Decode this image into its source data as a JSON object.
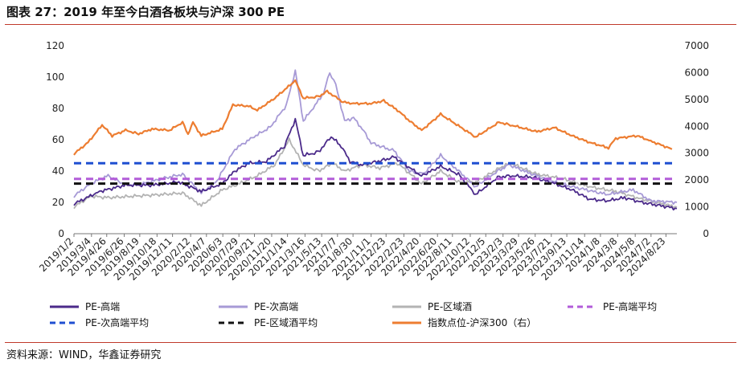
{
  "title": "图表 27：2019 年至今白酒各板块与沪深 300 PE",
  "source": "资料来源：WIND，华鑫证券研究",
  "chart_data": {
    "type": "line",
    "y_left": {
      "ylim": [
        0,
        120
      ],
      "ticks": [
        "0",
        "20",
        "40",
        "60",
        "80",
        "100",
        "120"
      ]
    },
    "y_right": {
      "ylim": [
        0,
        7000
      ],
      "ticks": [
        "0",
        "1000",
        "2000",
        "3000",
        "4000",
        "5000",
        "6000",
        "7000"
      ]
    },
    "x_range": [
      "2019/1/2",
      "2024/9/30"
    ],
    "x_ticks": [
      "2019/1/2",
      "2019/3/4",
      "2019/4/26",
      "2019/6/26",
      "2019/8/19",
      "2019/10/18",
      "2019/12/11",
      "2020/2/12",
      "2020/4/7",
      "2020/6/3",
      "2020/7/29",
      "2020/9/21",
      "2020/11/20",
      "2021/1/14",
      "2021/3/16",
      "2021/5/13",
      "2021/7/7",
      "2021/8/30",
      "2021/11/1",
      "2021/12/23",
      "2022/2/23",
      "2022/4/20",
      "2022/6/20",
      "2022/8/11",
      "2022/10/12",
      "2022/12/5",
      "2023/2/3",
      "2023/3/29",
      "2023/5/26",
      "2023/7/21",
      "2023/9/13",
      "2023/11/14",
      "2024/1/8",
      "2024/3/8",
      "2024/5/8",
      "2024/7/2",
      "2024/8/23"
    ],
    "series": [
      {
        "name": "PE-高端",
        "axis": "left",
        "color": "#4b2a8a",
        "style": "solid",
        "points": [
          [
            "2019/1/2",
            19
          ],
          [
            "2019/4/1",
            27
          ],
          [
            "2019/7/1",
            31
          ],
          [
            "2019/10/1",
            31
          ],
          [
            "2020/1/2",
            33
          ],
          [
            "2020/3/20",
            27
          ],
          [
            "2020/6/1",
            32
          ],
          [
            "2020/7/15",
            40
          ],
          [
            "2020/9/1",
            45
          ],
          [
            "2020/11/1",
            46
          ],
          [
            "2021/1/4",
            56
          ],
          [
            "2021/2/10",
            73
          ],
          [
            "2021/3/10",
            50
          ],
          [
            "2021/5/1",
            52
          ],
          [
            "2021/6/15",
            62
          ],
          [
            "2021/7/20",
            56
          ],
          [
            "2021/8/20",
            46
          ],
          [
            "2021/10/1",
            44
          ],
          [
            "2021/12/15",
            47
          ],
          [
            "2022/1/20",
            49
          ],
          [
            "2022/4/25",
            37
          ],
          [
            "2022/7/1",
            43
          ],
          [
            "2022/9/1",
            38
          ],
          [
            "2022/10/31",
            25
          ],
          [
            "2023/1/15",
            36
          ],
          [
            "2023/3/1",
            37
          ],
          [
            "2023/5/20",
            36
          ],
          [
            "2023/8/1",
            32
          ],
          [
            "2023/10/1",
            28
          ],
          [
            "2023/12/1",
            22
          ],
          [
            "2024/2/1",
            21
          ],
          [
            "2024/4/1",
            23
          ],
          [
            "2024/6/1",
            20
          ],
          [
            "2024/9/30",
            16
          ]
        ]
      },
      {
        "name": "PE-次高端",
        "axis": "left",
        "color": "#a79ad6",
        "style": "solid",
        "points": [
          [
            "2019/1/2",
            24
          ],
          [
            "2019/3/1",
            32
          ],
          [
            "2019/5/1",
            37
          ],
          [
            "2019/7/1",
            31
          ],
          [
            "2019/9/1",
            32
          ],
          [
            "2019/11/1",
            35
          ],
          [
            "2020/1/15",
            38
          ],
          [
            "2020/3/20",
            26
          ],
          [
            "2020/5/15",
            34
          ],
          [
            "2020/7/15",
            54
          ],
          [
            "2020/9/20",
            62
          ],
          [
            "2020/11/15",
            68
          ],
          [
            "2021/1/10",
            82
          ],
          [
            "2021/2/10",
            104
          ],
          [
            "2021/3/10",
            72
          ],
          [
            "2021/4/20",
            82
          ],
          [
            "2021/5/20",
            90
          ],
          [
            "2021/6/10",
            103
          ],
          [
            "2021/7/1",
            95
          ],
          [
            "2021/8/1",
            72
          ],
          [
            "2021/9/1",
            74
          ],
          [
            "2021/10/1",
            67
          ],
          [
            "2021/11/1",
            58
          ],
          [
            "2021/12/15",
            55
          ],
          [
            "2022/1/20",
            53
          ],
          [
            "2022/3/15",
            40
          ],
          [
            "2022/5/1",
            38
          ],
          [
            "2022/7/1",
            50
          ],
          [
            "2022/8/15",
            43
          ],
          [
            "2022/10/31",
            30
          ],
          [
            "2023/1/15",
            40
          ],
          [
            "2023/2/25",
            44
          ],
          [
            "2023/5/1",
            39
          ],
          [
            "2023/8/1",
            33
          ],
          [
            "2023/10/1",
            30
          ],
          [
            "2023/12/15",
            27
          ],
          [
            "2024/2/1",
            25
          ],
          [
            "2024/5/1",
            28
          ],
          [
            "2024/7/1",
            21
          ],
          [
            "2024/9/30",
            20
          ]
        ]
      },
      {
        "name": "PE-区域酒",
        "axis": "left",
        "color": "#b3b3b3",
        "style": "solid",
        "points": [
          [
            "2019/1/2",
            17
          ],
          [
            "2019/3/1",
            24
          ],
          [
            "2019/5/1",
            23
          ],
          [
            "2019/8/1",
            24
          ],
          [
            "2019/11/1",
            25
          ],
          [
            "2020/1/15",
            26
          ],
          [
            "2020/3/20",
            18
          ],
          [
            "2020/6/1",
            28
          ],
          [
            "2020/8/1",
            32
          ],
          [
            "2020/10/1",
            37
          ],
          [
            "2020/12/1",
            44
          ],
          [
            "2021/1/20",
            60
          ],
          [
            "2021/3/10",
            44
          ],
          [
            "2021/5/1",
            40
          ],
          [
            "2021/6/20",
            45
          ],
          [
            "2021/8/1",
            40
          ],
          [
            "2021/10/1",
            44
          ],
          [
            "2021/12/1",
            42
          ],
          [
            "2022/2/1",
            45
          ],
          [
            "2022/4/25",
            32
          ],
          [
            "2022/7/1",
            40
          ],
          [
            "2022/9/1",
            33
          ],
          [
            "2022/11/1",
            33
          ],
          [
            "2023/2/1",
            43
          ],
          [
            "2023/3/1",
            45
          ],
          [
            "2023/6/1",
            38
          ],
          [
            "2023/9/1",
            35
          ],
          [
            "2023/12/1",
            30
          ],
          [
            "2024/3/1",
            27
          ],
          [
            "2024/6/1",
            22
          ],
          [
            "2024/9/30",
            17
          ]
        ]
      },
      {
        "name": "PE-高端平均",
        "axis": "left",
        "color": "#b25cd9",
        "style": "dashed",
        "value": 35
      },
      {
        "name": "PE-次高端平均",
        "axis": "left",
        "color": "#1f4fd1",
        "style": "dashed",
        "value": 45
      },
      {
        "name": "PE-区域酒平均",
        "axis": "left",
        "color": "#111111",
        "style": "dashed",
        "value": 32
      },
      {
        "name": "指数点位-沪深300（右）",
        "axis": "right",
        "color": "#ed7d31",
        "style": "solid",
        "points": [
          [
            "2019/1/2",
            2970
          ],
          [
            "2019/2/20",
            3400
          ],
          [
            "2019/4/10",
            4050
          ],
          [
            "2019/5/15",
            3650
          ],
          [
            "2019/7/1",
            3850
          ],
          [
            "2019/8/15",
            3720
          ],
          [
            "2019/10/1",
            3900
          ],
          [
            "2019/12/1",
            3850
          ],
          [
            "2020/1/15",
            4150
          ],
          [
            "2020/2/3",
            3700
          ],
          [
            "2020/2/20",
            4150
          ],
          [
            "2020/3/20",
            3650
          ],
          [
            "2020/6/1",
            3900
          ],
          [
            "2020/7/8",
            4800
          ],
          [
            "2020/9/1",
            4750
          ],
          [
            "2020/10/1",
            4600
          ],
          [
            "2020/12/1",
            5050
          ],
          [
            "2021/2/10",
            5700
          ],
          [
            "2021/3/10",
            5050
          ],
          [
            "2021/5/1",
            5100
          ],
          [
            "2021/6/1",
            5300
          ],
          [
            "2021/7/27",
            4900
          ],
          [
            "2021/9/1",
            4850
          ],
          [
            "2021/11/1",
            4850
          ],
          [
            "2021/12/15",
            4950
          ],
          [
            "2022/2/1",
            4600
          ],
          [
            "2022/3/15",
            4200
          ],
          [
            "2022/4/26",
            3850
          ],
          [
            "2022/7/1",
            4450
          ],
          [
            "2022/10/31",
            3600
          ],
          [
            "2023/1/20",
            4150
          ],
          [
            "2023/3/1",
            4050
          ],
          [
            "2023/6/1",
            3800
          ],
          [
            "2023/8/1",
            3950
          ],
          [
            "2023/10/1",
            3650
          ],
          [
            "2023/12/1",
            3400
          ],
          [
            "2024/2/5",
            3200
          ],
          [
            "2024/3/1",
            3550
          ],
          [
            "2024/5/15",
            3650
          ],
          [
            "2024/7/1",
            3450
          ],
          [
            "2024/9/13",
            3150
          ]
        ]
      }
    ]
  }
}
